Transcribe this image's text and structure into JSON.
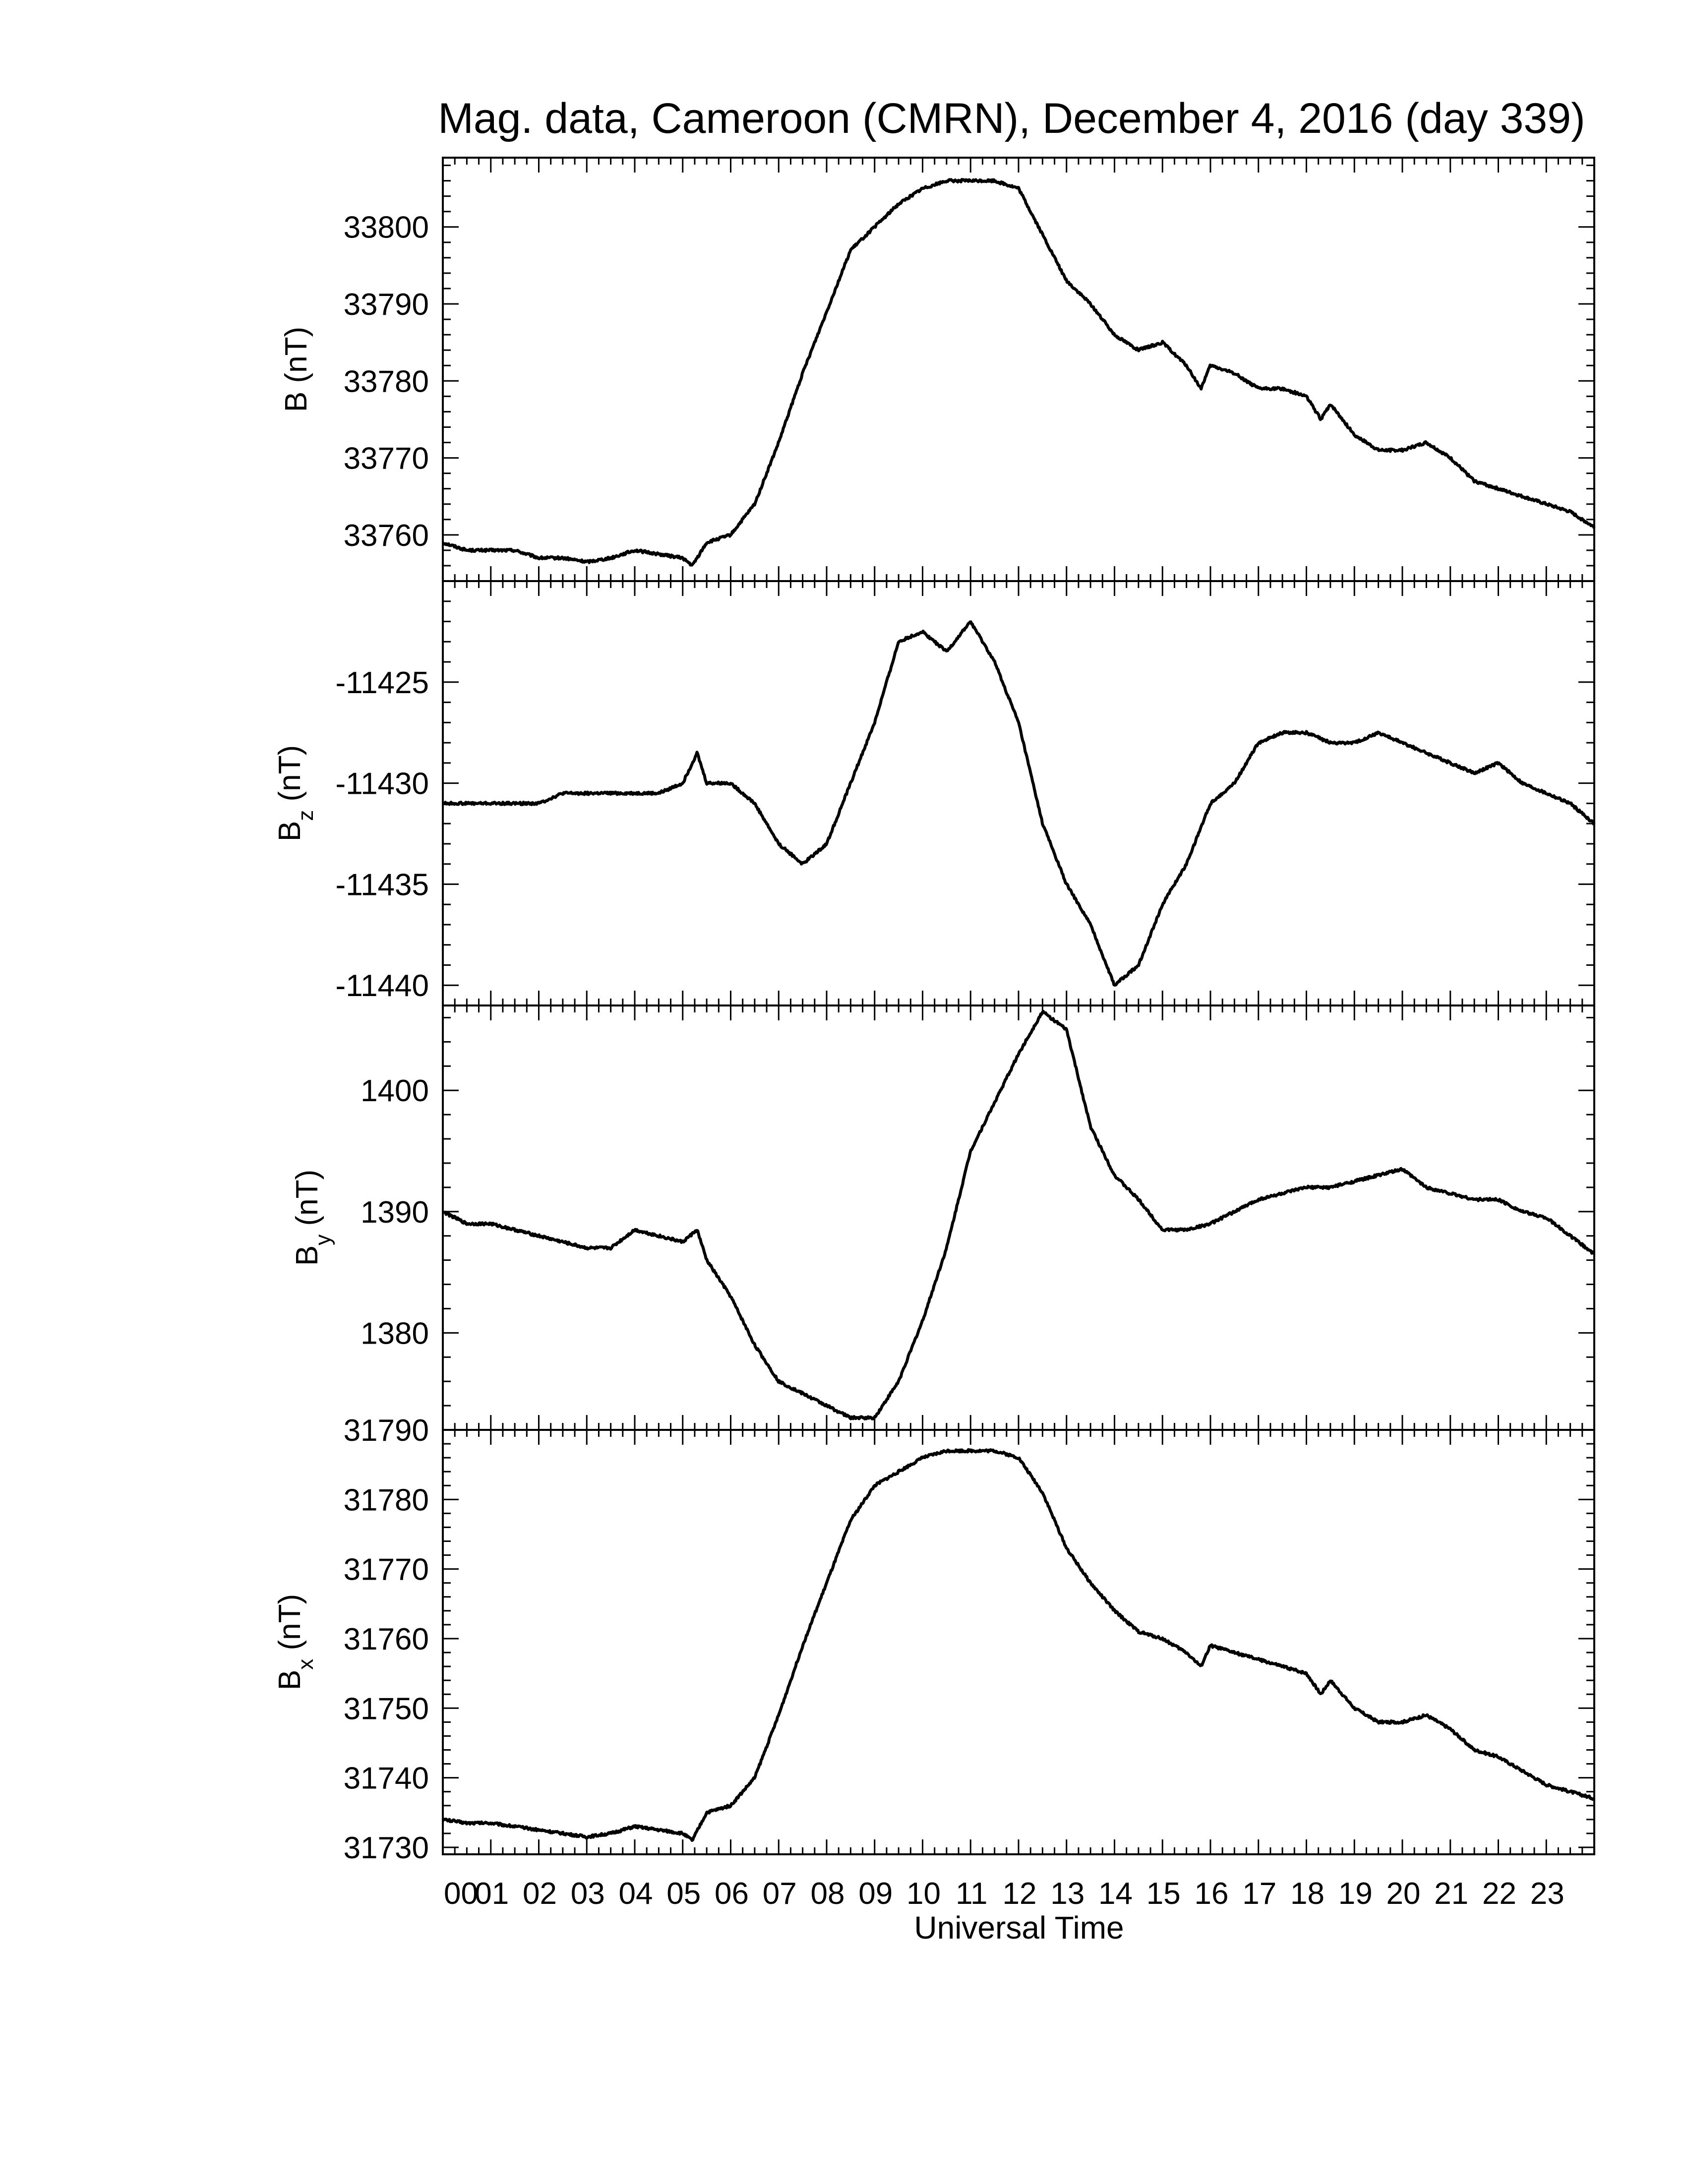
{
  "title": "Mag. data, Cameroon (CMRN), December 4, 2016 (day 339)",
  "xlabel": "Universal Time",
  "line_color": "#000000",
  "chart_data": [
    {
      "type": "line",
      "panel": "B",
      "ylabel_main": "B",
      "ylabel_sub": "",
      "ylabel_unit": "(nT)",
      "ylim": [
        33754,
        33809
      ],
      "yticks": [
        33760,
        33770,
        33780,
        33790,
        33800
      ],
      "xlim": [
        0,
        24
      ],
      "x": [
        0,
        0.5,
        1,
        1.5,
        2,
        2.5,
        3,
        3.5,
        4,
        4.5,
        5,
        5.2,
        5.5,
        6,
        6.5,
        7,
        7.5,
        8,
        8.5,
        9,
        9.5,
        10,
        10.5,
        11,
        11.5,
        12,
        12.5,
        13,
        13.5,
        14,
        14.5,
        15,
        15.5,
        15.8,
        16,
        16.5,
        17,
        17.5,
        18,
        18.3,
        18.5,
        19,
        19.5,
        20,
        20.5,
        21,
        21.5,
        22,
        22.5,
        23,
        23.5,
        24
      ],
      "y": [
        33759,
        33758,
        33758,
        33758,
        33757,
        33757,
        33756.5,
        33757,
        33758,
        33757.5,
        33757,
        33756,
        33759,
        33760,
        33764,
        33772,
        33781,
        33789,
        33797,
        33800,
        33803,
        33805,
        33806,
        33806,
        33806,
        33805,
        33799,
        33793,
        33790,
        33786,
        33784,
        33785,
        33782,
        33779,
        33782,
        33781,
        33779,
        33779,
        33778,
        33775,
        33777,
        33773,
        33771,
        33771,
        33772,
        33770,
        33767,
        33766,
        33765,
        33764,
        33763,
        33761
      ]
    },
    {
      "type": "line",
      "panel": "Bz",
      "ylabel_main": "B",
      "ylabel_sub": "z",
      "ylabel_unit": "(nT)",
      "ylim": [
        -11441,
        -11420
      ],
      "yticks": [
        -11425,
        -11430,
        -11435,
        -11440
      ],
      "xlim": [
        0,
        24
      ],
      "x": [
        0,
        0.5,
        1,
        1.5,
        2,
        2.5,
        3,
        3.5,
        4,
        4.5,
        5,
        5.3,
        5.5,
        6,
        6.5,
        7,
        7.5,
        8,
        8.5,
        9,
        9.5,
        10,
        10.5,
        11,
        11.5,
        12,
        12.5,
        13,
        13.5,
        14,
        14.5,
        15,
        15.5,
        16,
        16.5,
        17,
        17.5,
        18,
        18.5,
        19,
        19.5,
        20,
        20.5,
        21,
        21.5,
        22,
        22.5,
        23,
        23.5,
        24
      ],
      "y": [
        -11431,
        -11431,
        -11431,
        -11431,
        -11431,
        -11430.5,
        -11430.5,
        -11430.5,
        -11430.5,
        -11430.5,
        -11430,
        -11428.5,
        -11430,
        -11430,
        -11431,
        -11433,
        -11434,
        -11433,
        -11430,
        -11427,
        -11423,
        -11422.5,
        -11423.5,
        -11422,
        -11424,
        -11427,
        -11432,
        -11435,
        -11437,
        -11440,
        -11439,
        -11436,
        -11434,
        -11431,
        -11430,
        -11428,
        -11427.5,
        -11427.5,
        -11428,
        -11428,
        -11427.5,
        -11428,
        -11428.5,
        -11429,
        -11429.5,
        -11429,
        -11430,
        -11430.5,
        -11431,
        -11432
      ]
    },
    {
      "type": "line",
      "panel": "By",
      "ylabel_main": "B",
      "ylabel_sub": "y",
      "ylabel_unit": "(nT)",
      "ylim": [
        1372,
        1407
      ],
      "yticks": [
        1380,
        1390,
        1400
      ],
      "xlim": [
        0,
        24
      ],
      "x": [
        0,
        0.5,
        1,
        1.5,
        2,
        2.5,
        3,
        3.5,
        4,
        4.5,
        5,
        5.3,
        5.5,
        6,
        6.5,
        7,
        7.5,
        8,
        8.5,
        9,
        9.5,
        10,
        10.5,
        11,
        11.5,
        12,
        12.5,
        13,
        13.5,
        14,
        14.5,
        15,
        15.5,
        16,
        16.5,
        17,
        17.5,
        18,
        18.5,
        19,
        19.5,
        20,
        20.5,
        21,
        21.5,
        22,
        22.5,
        23,
        23.5,
        24
      ],
      "y": [
        1390,
        1389,
        1389,
        1388.5,
        1388,
        1387.5,
        1387,
        1387,
        1388.5,
        1388,
        1387.5,
        1388.5,
        1386,
        1383,
        1379,
        1376,
        1375,
        1374,
        1373,
        1373,
        1376,
        1381,
        1387,
        1395,
        1399,
        1403,
        1406.5,
        1405,
        1397,
        1393,
        1391,
        1388.5,
        1388.5,
        1389,
        1390,
        1391,
        1391.5,
        1392,
        1392,
        1392.5,
        1393,
        1393.5,
        1392,
        1391.5,
        1391,
        1391,
        1390,
        1389.5,
        1388,
        1386.5
      ]
    },
    {
      "type": "line",
      "panel": "Bx",
      "ylabel_main": "B",
      "ylabel_sub": "x",
      "ylabel_unit": "(nT)",
      "ylim": [
        31729,
        31790
      ],
      "yticks": [
        31730,
        31740,
        31750,
        31760,
        31770,
        31780,
        31790
      ],
      "xlim": [
        0,
        24
      ],
      "x": [
        0,
        0.5,
        1,
        1.5,
        2,
        2.5,
        3,
        3.5,
        4,
        4.5,
        5,
        5.2,
        5.5,
        6,
        6.5,
        7,
        7.5,
        8,
        8.5,
        9,
        9.5,
        10,
        10.5,
        11,
        11.5,
        12,
        12.5,
        13,
        13.5,
        14,
        14.5,
        15,
        15.5,
        15.8,
        16,
        16.5,
        17,
        17.5,
        18,
        18.3,
        18.5,
        19,
        19.5,
        20,
        20.5,
        21,
        21.5,
        22,
        22.5,
        23,
        23.5,
        24
      ],
      "y": [
        31734,
        31733.5,
        31733.5,
        31733,
        31732.5,
        31732,
        31731.5,
        31732,
        31733,
        31732.5,
        31732,
        31731,
        31735,
        31736,
        31740,
        31749,
        31759,
        31768,
        31777,
        31782,
        31784,
        31786,
        31787,
        31787,
        31787,
        31786,
        31781,
        31773,
        31768,
        31764,
        31761,
        31760,
        31758,
        31756,
        31759,
        31758,
        31757,
        31756,
        31755,
        31752,
        31754,
        31750,
        31748,
        31748,
        31749,
        31747,
        31744,
        31743,
        31741,
        31739,
        31738,
        31737
      ]
    }
  ],
  "x_tick_labels": [
    "00",
    "01",
    "02",
    "03",
    "04",
    "05",
    "06",
    "07",
    "08",
    "09",
    "10",
    "11",
    "12",
    "13",
    "14",
    "15",
    "16",
    "17",
    "18",
    "19",
    "20",
    "21",
    "22",
    "23"
  ]
}
